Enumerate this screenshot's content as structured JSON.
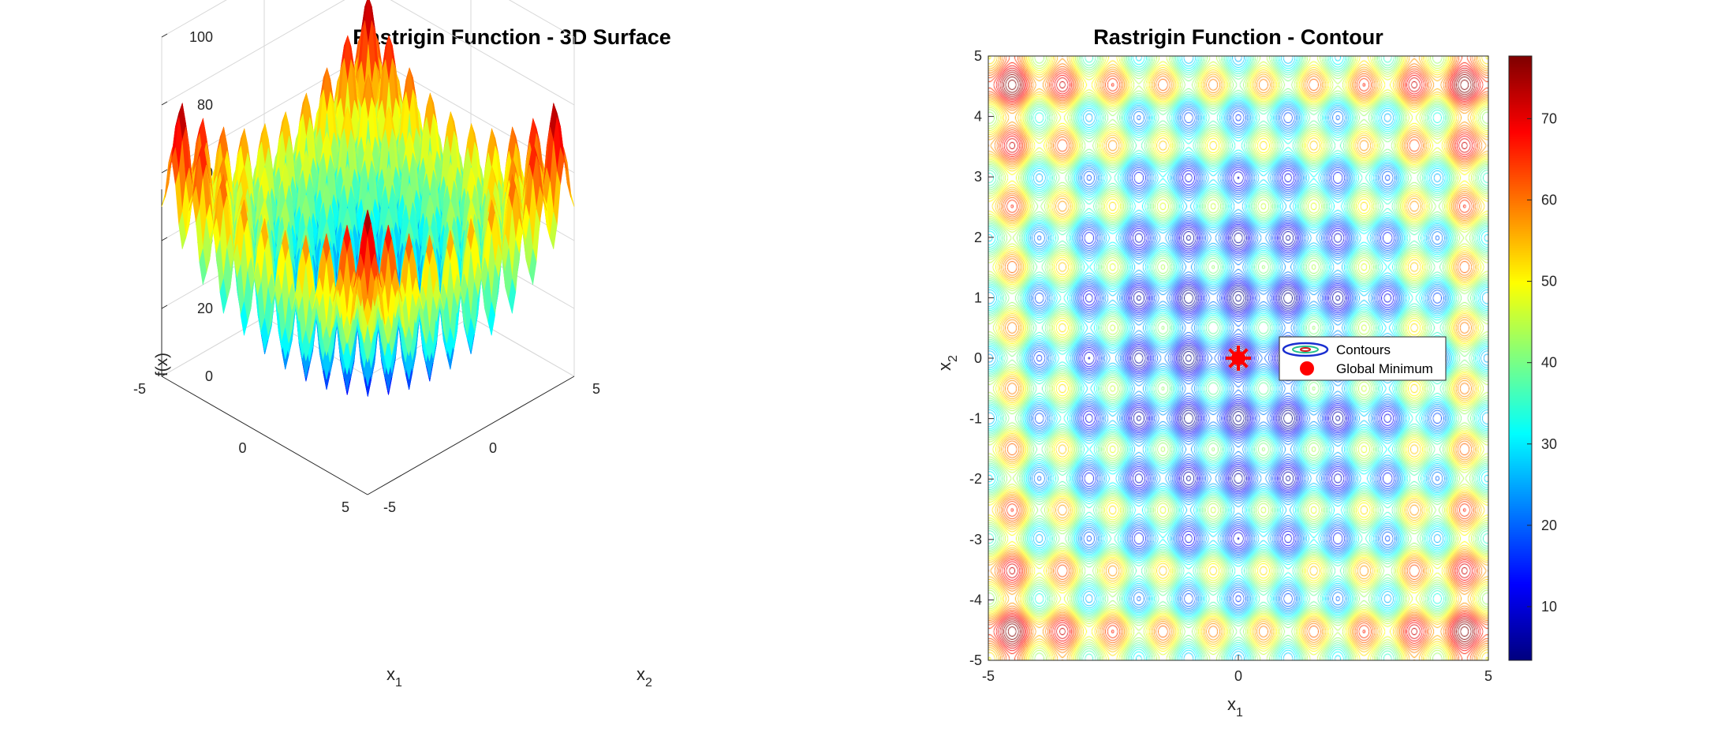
{
  "chart_data": [
    {
      "type": "surface",
      "title": "Rastrigin Function - 3D Surface",
      "xlabel": "x",
      "xlabel_sub": "1",
      "ylabel": "x",
      "ylabel_sub": "2",
      "zlabel": "f(x)",
      "function": "f(x1,x2) = 20 + x1^2 + x2^2 - 10(cos(2πx1) + cos(2πx2))",
      "x_range": [
        -5,
        5
      ],
      "y_range": [
        -5,
        5
      ],
      "zlim": [
        0,
        100
      ],
      "x_ticks": [
        "-5",
        "0",
        "5"
      ],
      "y_ticks": [
        "-5",
        "0",
        "5"
      ],
      "z_ticks": [
        "0",
        "20",
        "40",
        "60",
        "80",
        "100"
      ],
      "colormap": "jet",
      "grid": true
    },
    {
      "type": "contour",
      "title": "Rastrigin Function - Contour",
      "xlabel": "x",
      "xlabel_sub": "1",
      "ylabel": "x",
      "ylabel_sub": "2",
      "function": "f(x1,x2) = 20 + x1^2 + x2^2 - 10(cos(2πx1) + cos(2πx2))",
      "x_range": [
        -5,
        5
      ],
      "y_range": [
        -5,
        5
      ],
      "x_ticks": [
        "-5",
        "0",
        "5"
      ],
      "y_ticks": [
        "-5",
        "-4",
        "-3",
        "-2",
        "-1",
        "0",
        "1",
        "2",
        "3",
        "4",
        "5"
      ],
      "colorbar_range": [
        3.4,
        77.7
      ],
      "colorbar_ticks": [
        "10",
        "20",
        "30",
        "40",
        "50",
        "60",
        "70"
      ],
      "colormap": "jet",
      "global_minimum": {
        "x": 0,
        "y": 0,
        "color": "#ff0000"
      },
      "legend": [
        "Contours",
        "Global Minimum"
      ],
      "legend_position": "center-right"
    }
  ]
}
